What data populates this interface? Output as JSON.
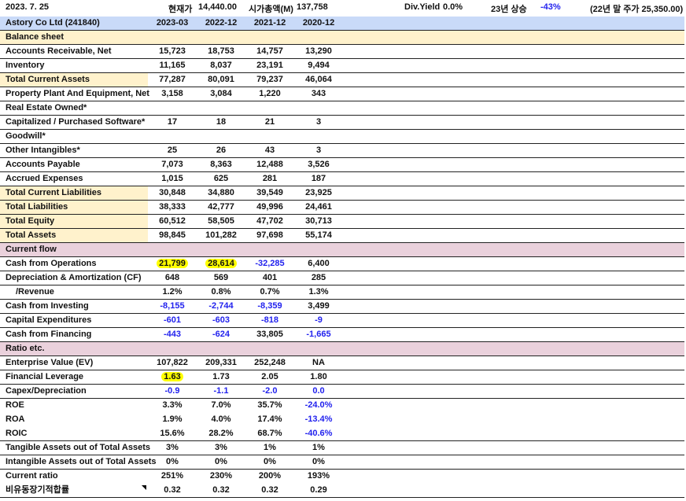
{
  "topbar": {
    "date": "2023. 7. 25",
    "price_label": "현재가",
    "price": "14,440.00",
    "mcap_label": "시가총액(M)",
    "mcap": "137,758",
    "div_label": "Div.Yield",
    "div": "0.0%",
    "ytd_label": "23년 상승",
    "ytd": "-43%",
    "prev_close": "(22년 말 주가 25,350.00)"
  },
  "header": {
    "company": "Astory Co Ltd (241840)",
    "periods": [
      "2023-03",
      "2022-12",
      "2021-12",
      "2020-12"
    ]
  },
  "colors": {
    "header_bg": "#c9daf8",
    "balance_bg": "#fff2cc",
    "section_bg": "#ead1dc",
    "negative": "#2222ee",
    "highlight": "#ffff00"
  },
  "rows": [
    {
      "type": "sec1",
      "label": "Balance sheet"
    },
    {
      "label": "Accounts Receivable, Net",
      "values": [
        "15,723",
        "18,753",
        "14,757",
        "13,290"
      ]
    },
    {
      "label": "Inventory",
      "values": [
        "11,165",
        "8,037",
        "23,191",
        "9,494"
      ]
    },
    {
      "label": "Total Current Assets",
      "hl": true,
      "values": [
        "77,287",
        "80,091",
        "79,237",
        "46,064"
      ]
    },
    {
      "label": "Property Plant And Equipment, Net",
      "values": [
        "3,158",
        "3,084",
        "1,220",
        "343"
      ]
    },
    {
      "label": "Real Estate Owned*",
      "values": [
        "",
        "",
        "",
        ""
      ]
    },
    {
      "label": "Capitalized / Purchased Software*",
      "values": [
        "17",
        "18",
        "21",
        "3"
      ]
    },
    {
      "label": "Goodwill*",
      "values": [
        "",
        "",
        "",
        ""
      ]
    },
    {
      "label": "Other Intangibles*",
      "values": [
        "25",
        "26",
        "43",
        "3"
      ]
    },
    {
      "label": "Accounts Payable",
      "values": [
        "7,073",
        "8,363",
        "12,488",
        "3,526"
      ]
    },
    {
      "label": "Accrued Expenses",
      "values": [
        "1,015",
        "625",
        "281",
        "187"
      ]
    },
    {
      "label": "Total Current Liabilities",
      "hl": true,
      "values": [
        "30,848",
        "34,880",
        "39,549",
        "23,925"
      ]
    },
    {
      "label": "Total Liabilities",
      "hl": true,
      "values": [
        "38,333",
        "42,777",
        "49,996",
        "24,461"
      ]
    },
    {
      "label": "Total Equity",
      "hl": true,
      "values": [
        "60,512",
        "58,505",
        "47,702",
        "30,713"
      ]
    },
    {
      "label": "Total Assets",
      "hl": true,
      "values": [
        "98,845",
        "101,282",
        "97,698",
        "55,174"
      ]
    },
    {
      "type": "sec2",
      "label": "Current flow"
    },
    {
      "label": "Cash from Operations",
      "values": [
        "21,799",
        "28,614",
        "-32,285",
        "6,400"
      ],
      "marks": [
        0,
        1
      ]
    },
    {
      "label": "Depreciation & Amortization (CF)",
      "values": [
        "648",
        "569",
        "401",
        "285"
      ]
    },
    {
      "label": "   /Revenue",
      "values": [
        "1.2%",
        "0.8%",
        "0.7%",
        "1.3%"
      ]
    },
    {
      "label": "Cash from Investing",
      "values": [
        "-8,155",
        "-2,744",
        "-8,359",
        "3,499"
      ]
    },
    {
      "label": "Capital Expenditures",
      "values": [
        "-601",
        "-603",
        "-818",
        "-9"
      ]
    },
    {
      "label": "Cash from Financing",
      "values": [
        "-443",
        "-624",
        "33,805",
        "-1,665"
      ]
    },
    {
      "type": "sec2",
      "label": "Ratio etc."
    },
    {
      "label": "Enterprise Value (EV)",
      "values": [
        "107,822",
        "209,331",
        "252,248",
        "NA"
      ]
    },
    {
      "label": "Financial Leverage",
      "values": [
        "1.63",
        "1.73",
        "2.05",
        "1.80"
      ],
      "marks": [
        0
      ]
    },
    {
      "label": "Capex/Depreciation",
      "values": [
        "-0.9",
        "-1.1",
        "-2.0",
        "0.0"
      ],
      "allblue": true
    },
    {
      "label": "ROE",
      "values": [
        "3.3%",
        "7.0%",
        "35.7%",
        "-24.0%"
      ],
      "nb": true
    },
    {
      "label": "ROA",
      "values": [
        "1.9%",
        "4.0%",
        "17.4%",
        "-13.4%"
      ],
      "nb": true
    },
    {
      "label": "ROIC",
      "values": [
        "15.6%",
        "28.2%",
        "68.7%",
        "-40.6%"
      ]
    },
    {
      "label": "Tangible Assets out of Total Assets",
      "values": [
        "3%",
        "3%",
        "1%",
        "1%"
      ]
    },
    {
      "label": "Intangible Assets out of Total Assets",
      "values": [
        "0%",
        "0%",
        "0%",
        "0%"
      ]
    },
    {
      "label": "Current ratio",
      "values": [
        "251%",
        "230%",
        "200%",
        "193%"
      ],
      "nb": true
    },
    {
      "label": "비유동장기적합률",
      "values": [
        "0.32",
        "0.32",
        "0.32",
        "0.29"
      ],
      "note": true
    }
  ]
}
